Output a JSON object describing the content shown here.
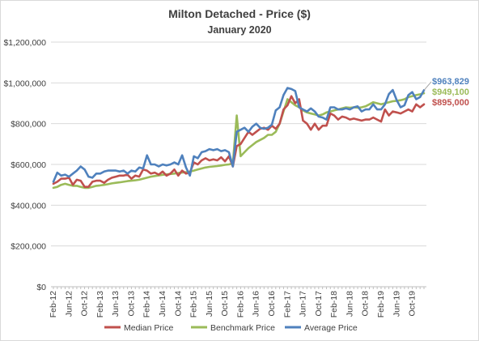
{
  "chart_data": {
    "type": "line",
    "title": "Milton Detached - Price ($)",
    "subtitle": "January 2020",
    "xlabel": "",
    "ylabel": "",
    "ylim": [
      0,
      1200000
    ],
    "yticks": [
      "$0",
      "$200,000",
      "$400,000",
      "$600,000",
      "$800,000",
      "$1,000,000",
      "$1,200,000"
    ],
    "grid": true,
    "legend_position": "bottom",
    "x": [
      "Feb-12",
      "Mar-12",
      "Apr-12",
      "May-12",
      "Jun-12",
      "Jul-12",
      "Aug-12",
      "Sep-12",
      "Oct-12",
      "Nov-12",
      "Dec-12",
      "Jan-13",
      "Feb-13",
      "Mar-13",
      "Apr-13",
      "May-13",
      "Jun-13",
      "Jul-13",
      "Aug-13",
      "Sep-13",
      "Oct-13",
      "Nov-13",
      "Dec-13",
      "Jan-14",
      "Feb-14",
      "Mar-14",
      "Apr-14",
      "May-14",
      "Jun-14",
      "Jul-14",
      "Aug-14",
      "Sep-14",
      "Oct-14",
      "Nov-14",
      "Dec-14",
      "Jan-15",
      "Feb-15",
      "Mar-15",
      "Apr-15",
      "May-15",
      "Jun-15",
      "Jul-15",
      "Aug-15",
      "Sep-15",
      "Oct-15",
      "Nov-15",
      "Dec-15",
      "Jan-16",
      "Feb-16",
      "Mar-16",
      "Apr-16",
      "May-16",
      "Jun-16",
      "Jul-16",
      "Aug-16",
      "Sep-16",
      "Oct-16",
      "Nov-16",
      "Dec-16",
      "Jan-17",
      "Feb-17",
      "Mar-17",
      "Apr-17",
      "May-17",
      "Jun-17",
      "Jul-17",
      "Aug-17",
      "Sep-17",
      "Oct-17",
      "Nov-17",
      "Dec-17",
      "Jan-18",
      "Feb-18",
      "Mar-18",
      "Apr-18",
      "May-18",
      "Jun-18",
      "Jul-18",
      "Aug-18",
      "Sep-18",
      "Oct-18",
      "Nov-18",
      "Dec-18",
      "Jan-19",
      "Feb-19",
      "Mar-19",
      "Apr-19",
      "May-19",
      "Jun-19",
      "Jul-19",
      "Aug-19",
      "Sep-19",
      "Oct-19",
      "Nov-19",
      "Dec-19",
      "Jan-20"
    ],
    "xtick_labels": [
      "Feb-12",
      "Jun-12",
      "Oct-12",
      "Feb-13",
      "Jun-13",
      "Oct-13",
      "Feb-14",
      "Jun-14",
      "Oct-14",
      "Feb-15",
      "Jun-15",
      "Oct-15",
      "Feb-16",
      "Jun-16",
      "Oct-16",
      "Feb-17",
      "Jun-17",
      "Oct-17",
      "Feb-18",
      "Jun-18",
      "Oct-18",
      "Feb-19",
      "Jun-19",
      "Oct-19"
    ],
    "series": [
      {
        "name": "Median Price",
        "color": "#c0504d",
        "values": [
          505000,
          515000,
          530000,
          530000,
          535000,
          500000,
          525000,
          520000,
          490000,
          490000,
          515000,
          520000,
          520000,
          510000,
          525000,
          535000,
          540000,
          545000,
          545000,
          550000,
          530000,
          545000,
          540000,
          575000,
          570000,
          555000,
          560000,
          550000,
          565000,
          545000,
          555000,
          575000,
          545000,
          570000,
          555000,
          560000,
          610000,
          600000,
          620000,
          630000,
          620000,
          625000,
          620000,
          635000,
          615000,
          640000,
          590000,
          690000,
          700000,
          730000,
          760000,
          745000,
          760000,
          775000,
          780000,
          770000,
          790000,
          775000,
          800000,
          870000,
          890000,
          935000,
          900000,
          920000,
          815000,
          800000,
          770000,
          800000,
          770000,
          790000,
          790000,
          850000,
          840000,
          820000,
          835000,
          830000,
          820000,
          825000,
          820000,
          815000,
          820000,
          820000,
          830000,
          820000,
          810000,
          870000,
          840000,
          860000,
          855000,
          850000,
          860000,
          870000,
          860000,
          895000,
          880000,
          895000
        ]
      },
      {
        "name": "Benchmark Price",
        "color": "#9bbb59",
        "values": [
          485000,
          490000,
          500000,
          505000,
          500000,
          495000,
          495000,
          490000,
          485000,
          485000,
          490000,
          495000,
          497000,
          500000,
          503000,
          507000,
          510000,
          512000,
          515000,
          518000,
          520000,
          522000,
          525000,
          530000,
          535000,
          540000,
          543000,
          546000,
          549000,
          551000,
          553000,
          555000,
          558000,
          560000,
          562000,
          565000,
          570000,
          575000,
          580000,
          585000,
          588000,
          590000,
          592000,
          595000,
          598000,
          600000,
          605000,
          840000,
          640000,
          660000,
          680000,
          695000,
          710000,
          720000,
          730000,
          745000,
          745000,
          760000,
          800000,
          860000,
          920000,
          905000,
          890000,
          880000,
          865000,
          855000,
          850000,
          845000,
          840000,
          845000,
          855000,
          860000,
          865000,
          870000,
          875000,
          880000,
          878000,
          880000,
          878000,
          880000,
          885000,
          895000,
          905000,
          900000,
          895000,
          900000,
          905000,
          910000,
          912000,
          915000,
          920000,
          930000,
          935000,
          940000,
          944000,
          949100
        ]
      },
      {
        "name": "Average Price",
        "color": "#4f81bd",
        "values": [
          515000,
          560000,
          545000,
          550000,
          540000,
          555000,
          570000,
          590000,
          575000,
          540000,
          535000,
          555000,
          555000,
          565000,
          570000,
          570000,
          570000,
          565000,
          570000,
          555000,
          570000,
          565000,
          585000,
          580000,
          645000,
          600000,
          600000,
          590000,
          600000,
          595000,
          600000,
          610000,
          600000,
          645000,
          585000,
          545000,
          640000,
          630000,
          660000,
          665000,
          675000,
          670000,
          675000,
          665000,
          670000,
          660000,
          590000,
          760000,
          770000,
          780000,
          760000,
          785000,
          800000,
          780000,
          775000,
          780000,
          795000,
          865000,
          880000,
          940000,
          975000,
          970000,
          960000,
          880000,
          870000,
          860000,
          875000,
          860000,
          835000,
          830000,
          820000,
          880000,
          880000,
          870000,
          870000,
          875000,
          870000,
          880000,
          885000,
          860000,
          870000,
          870000,
          895000,
          870000,
          870000,
          895000,
          945000,
          965000,
          915000,
          880000,
          890000,
          940000,
          955000,
          920000,
          930000,
          963829
        ]
      }
    ],
    "end_labels": [
      {
        "text": "$963,829",
        "color": "#4f81bd"
      },
      {
        "text": "$949,100",
        "color": "#9bbb59"
      },
      {
        "text": "$895,000",
        "color": "#c0504d"
      }
    ]
  }
}
